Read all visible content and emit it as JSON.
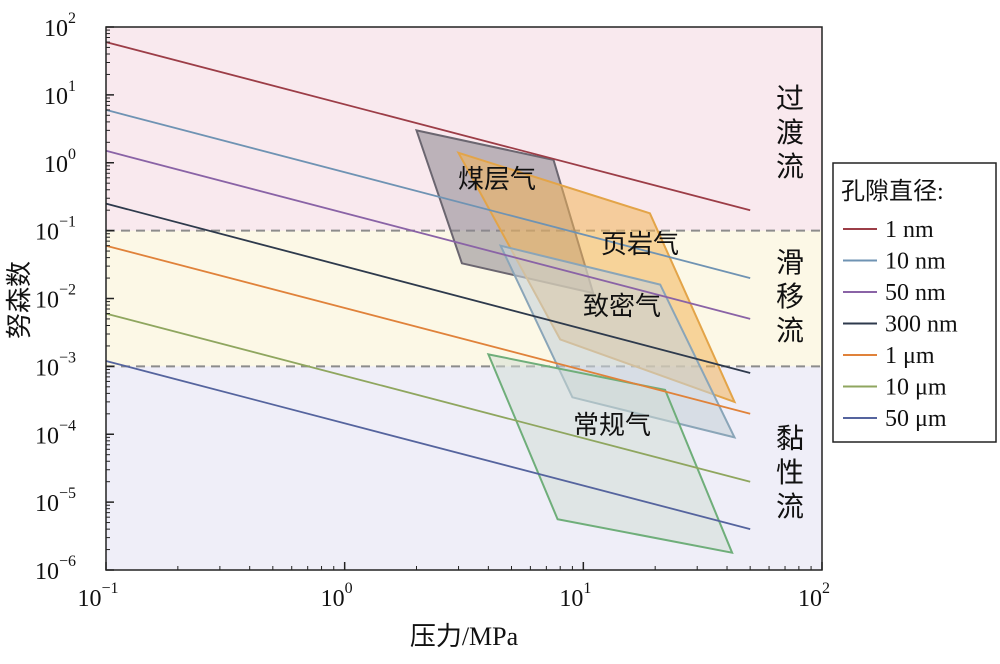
{
  "chart_data": {
    "type": "line",
    "xlabel": "压力/MPa",
    "ylabel": "努森数",
    "xscale": "log",
    "yscale": "log",
    "xlim": [
      0.1,
      100
    ],
    "ylim": [
      1e-06,
      100
    ],
    "x_ticks": [
      {
        "value": 0.1,
        "base": "10",
        "exp": "−1"
      },
      {
        "value": 1,
        "base": "10",
        "exp": "0"
      },
      {
        "value": 10,
        "base": "10",
        "exp": "1"
      },
      {
        "value": 100,
        "base": "10",
        "exp": "2"
      }
    ],
    "y_ticks": [
      {
        "value": 100,
        "base": "10",
        "exp": "2"
      },
      {
        "value": 10,
        "base": "10",
        "exp": "1"
      },
      {
        "value": 1,
        "base": "10",
        "exp": "0"
      },
      {
        "value": 0.1,
        "base": "10",
        "exp": "−1"
      },
      {
        "value": 0.01,
        "base": "10",
        "exp": "−2"
      },
      {
        "value": 0.001,
        "base": "10",
        "exp": "−3"
      },
      {
        "value": 0.0001,
        "base": "10",
        "exp": "−4"
      },
      {
        "value": 1e-05,
        "base": "10",
        "exp": "−5"
      },
      {
        "value": 1e-06,
        "base": "10",
        "exp": "−6"
      }
    ],
    "regimes": [
      {
        "label_chars": [
          "过",
          "渡",
          "流"
        ],
        "y_range": [
          0.1,
          100
        ],
        "color": "#f9e9ee"
      },
      {
        "label_chars": [
          "滑",
          "移",
          "流"
        ],
        "y_range": [
          0.001,
          0.1
        ],
        "color": "#fcf8e6"
      },
      {
        "label_chars": [
          "黏",
          "性",
          "流"
        ],
        "y_range": [
          1e-06,
          0.001
        ],
        "color": "#efeef8"
      }
    ],
    "boundaries": [
      0.1,
      0.001
    ],
    "legend": {
      "title": "孔隙直径:",
      "position": "right"
    },
    "series": [
      {
        "name": "1 nm",
        "color": "#9c3d47",
        "x": [
          0.1,
          50
        ],
        "y": [
          60,
          0.2
        ]
      },
      {
        "name": "10 nm",
        "color": "#6f93b3",
        "x": [
          0.1,
          50
        ],
        "y": [
          6,
          0.02
        ]
      },
      {
        "name": "50 nm",
        "color": "#8a63a6",
        "x": [
          0.1,
          50
        ],
        "y": [
          1.5,
          0.005
        ]
      },
      {
        "name": "300 nm",
        "color": "#2e3a4c",
        "x": [
          0.1,
          50
        ],
        "y": [
          0.25,
          0.0008
        ]
      },
      {
        "name": "1 μm",
        "color": "#e0823a",
        "x": [
          0.1,
          50
        ],
        "y": [
          0.06,
          0.0002
        ]
      },
      {
        "name": "10 μm",
        "color": "#8fa65f",
        "x": [
          0.1,
          50
        ],
        "y": [
          0.006,
          2e-05
        ]
      },
      {
        "name": "50 μm",
        "color": "#55649e",
        "x": [
          0.1,
          50
        ],
        "y": [
          0.0012,
          4e-06
        ]
      }
    ],
    "regions": [
      {
        "label": "煤层气",
        "fill": "#8a858e",
        "stroke": "#6b6670",
        "opacity": 0.55,
        "points": [
          [
            2,
            3
          ],
          [
            7.5,
            1.1
          ],
          [
            11,
            0.012
          ],
          [
            3.1,
            0.033
          ]
        ]
      },
      {
        "label": "页岩气",
        "fill": "#f2b45a",
        "stroke": "#e3a448",
        "opacity": 0.55,
        "points": [
          [
            3,
            1.4
          ],
          [
            19,
            0.18
          ],
          [
            43,
            0.0003
          ],
          [
            8,
            0.0025
          ]
        ]
      },
      {
        "label": "致密气",
        "fill": "#c6d2d8",
        "stroke": "#8aa5b8",
        "opacity": 0.6,
        "points": [
          [
            4.5,
            0.06
          ],
          [
            21,
            0.016
          ],
          [
            43,
            9e-05
          ],
          [
            9,
            0.00035
          ]
        ]
      },
      {
        "label": "常规气",
        "fill": "#cfdcd2",
        "stroke": "#6fae7a",
        "opacity": 0.5,
        "points": [
          [
            4,
            0.0015
          ],
          [
            22,
            0.00045
          ],
          [
            42,
            1.8e-06
          ],
          [
            7.8,
            5.6e-06
          ]
        ]
      }
    ]
  }
}
